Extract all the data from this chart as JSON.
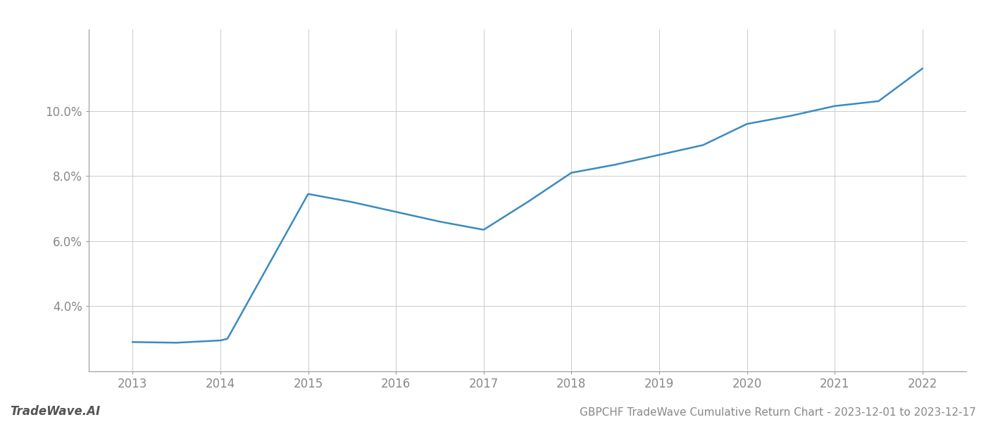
{
  "x": [
    2013,
    2013.5,
    2014,
    2014.08,
    2015,
    2015.5,
    2016,
    2016.5,
    2017,
    2017.5,
    2018,
    2018.5,
    2019,
    2019.5,
    2020,
    2020.5,
    2021,
    2021.5,
    2022
  ],
  "y": [
    2.9,
    2.88,
    2.95,
    3.0,
    7.45,
    7.2,
    6.9,
    6.6,
    6.35,
    7.2,
    8.1,
    8.35,
    8.65,
    8.95,
    9.6,
    9.85,
    10.15,
    10.3,
    11.3
  ],
  "line_color": "#3a8bbf",
  "line_width": 1.8,
  "background_color": "#ffffff",
  "grid_color": "#cccccc",
  "title": "GBPCHF TradeWave Cumulative Return Chart - 2023-12-01 to 2023-12-17",
  "watermark": "TradeWave.AI",
  "xlim": [
    2012.5,
    2022.5
  ],
  "ylim": [
    2.0,
    12.5
  ],
  "xticks": [
    2013,
    2014,
    2015,
    2016,
    2017,
    2018,
    2019,
    2020,
    2021,
    2022
  ],
  "yticks": [
    4.0,
    6.0,
    8.0,
    10.0
  ],
  "title_fontsize": 11,
  "tick_fontsize": 12,
  "watermark_fontsize": 12
}
